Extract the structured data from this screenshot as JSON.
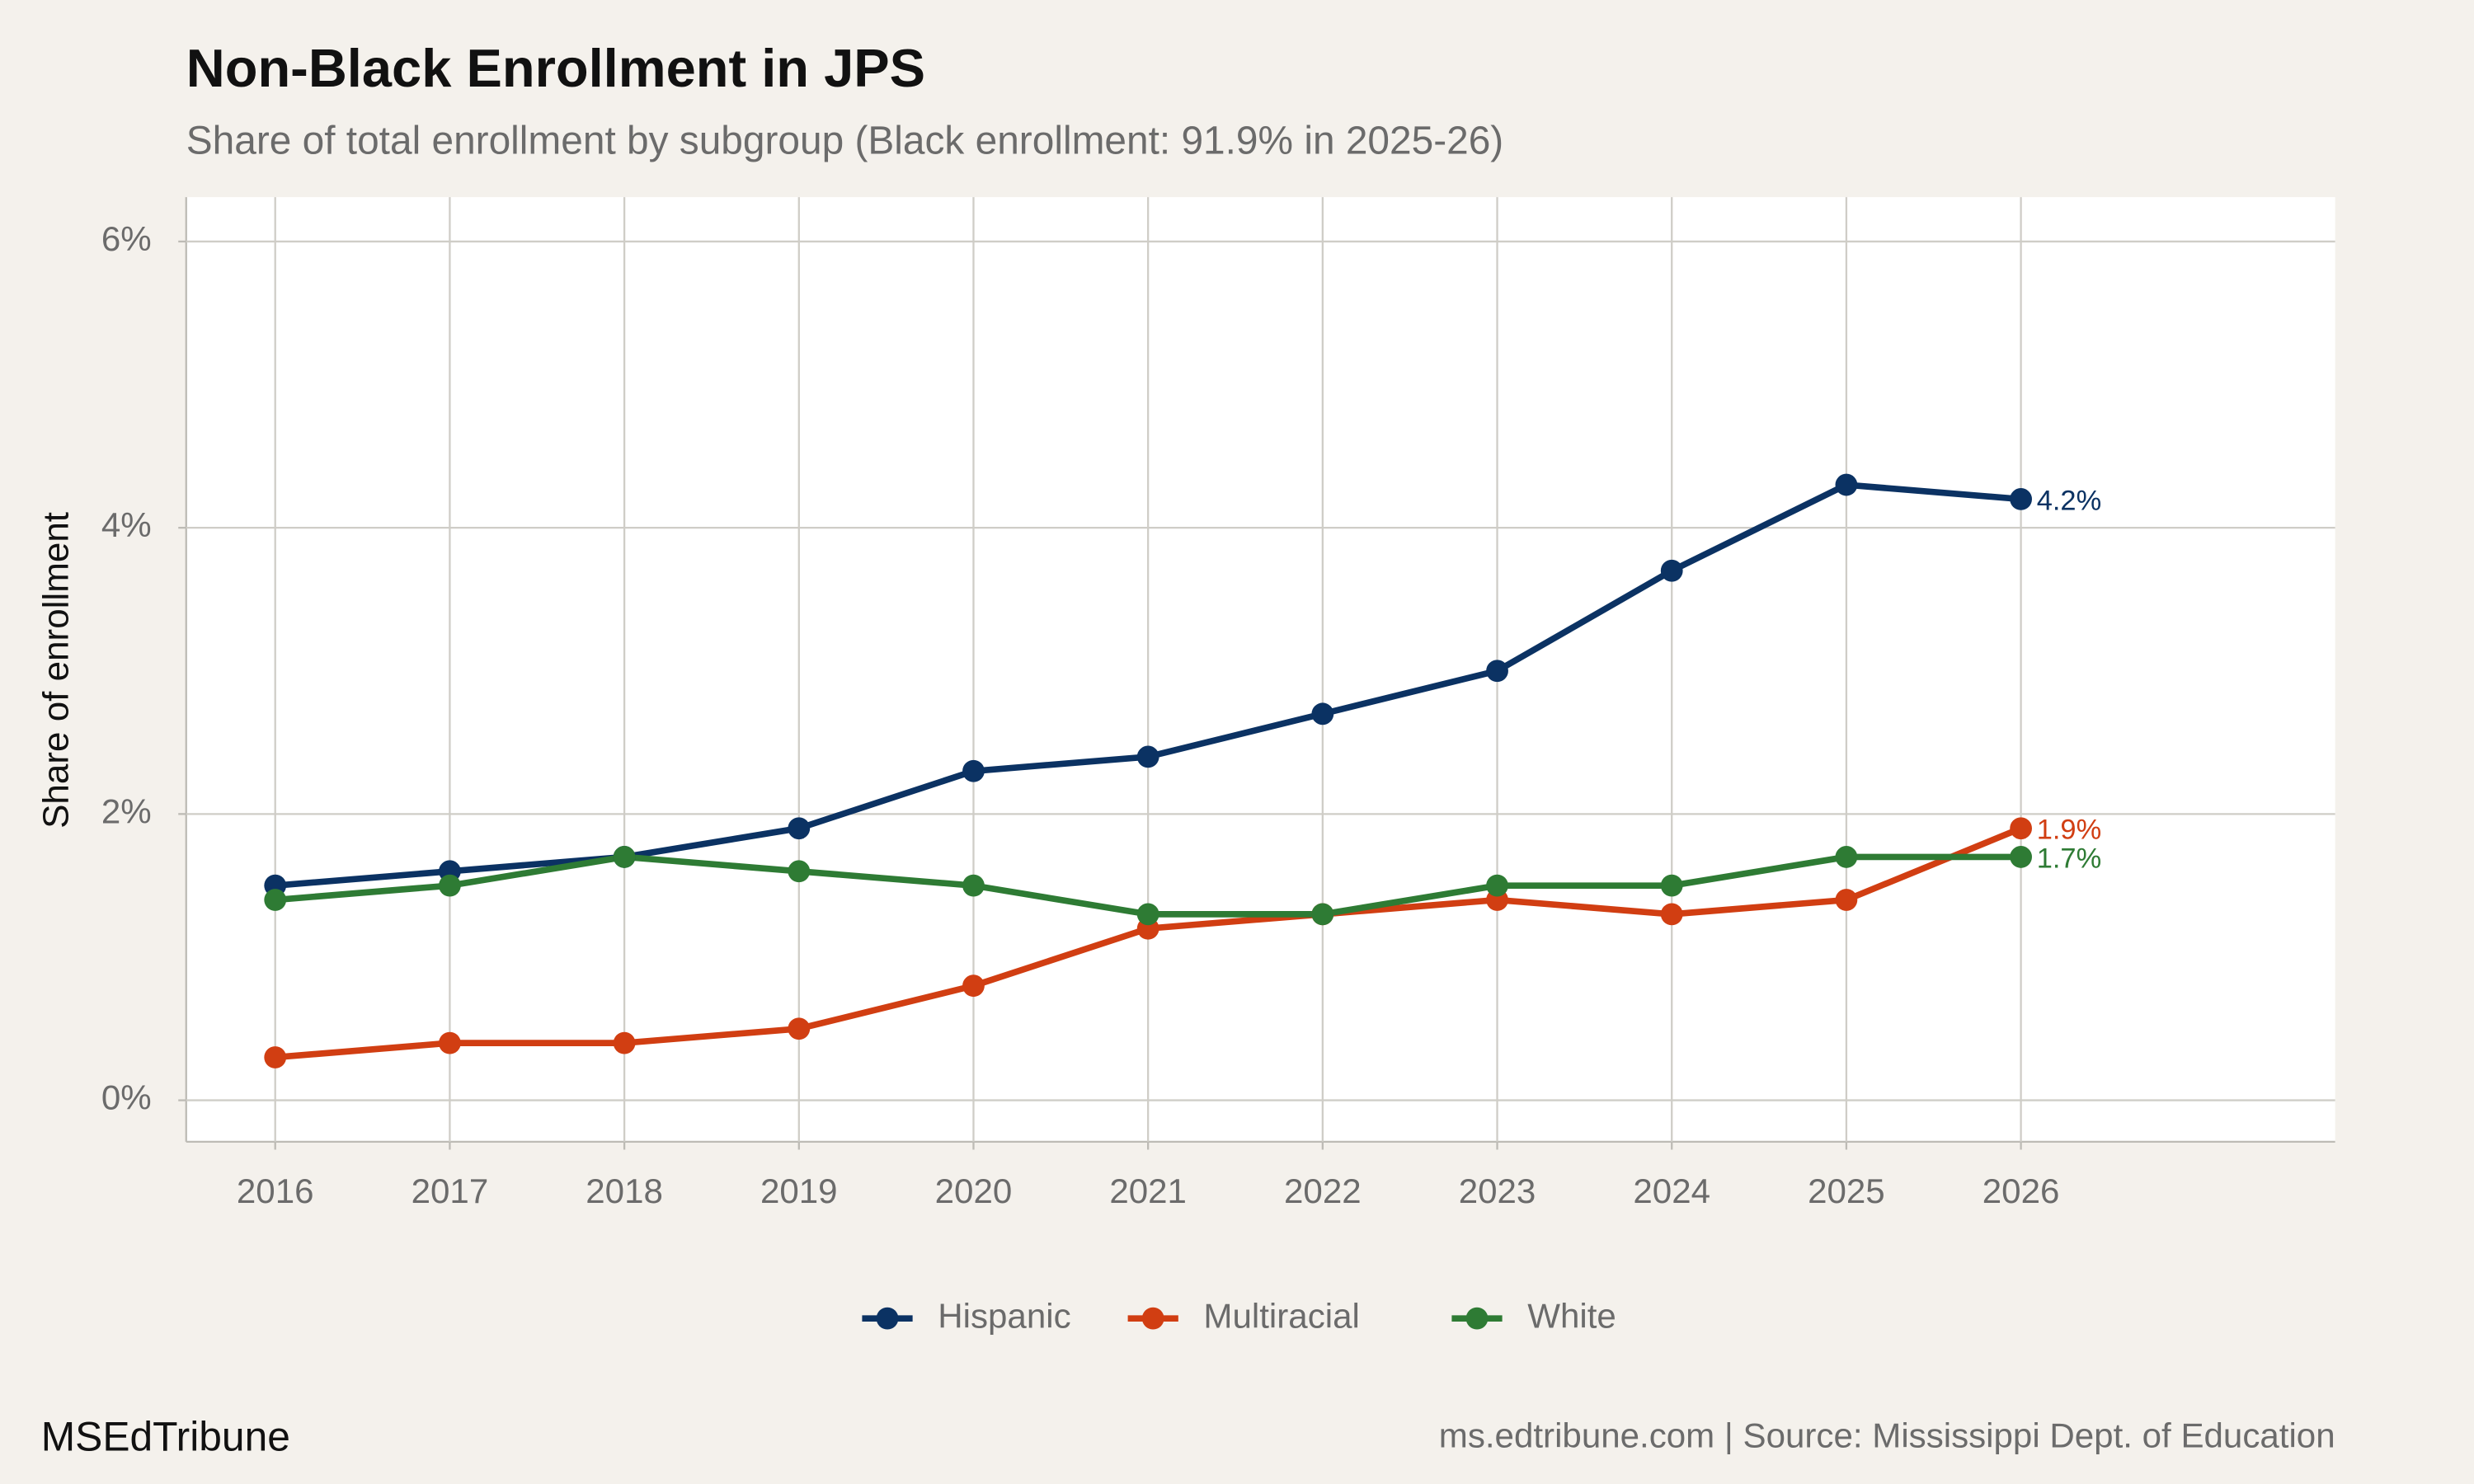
{
  "chart_data": {
    "type": "line",
    "title": "Non-Black Enrollment in JPS",
    "subtitle": "Share of total enrollment by subgroup (Black enrollment: 91.9% in 2025-26)",
    "y_label": "Share of enrollment",
    "caption_left": "MSEdTribune",
    "caption_right": "ms.edtribune.com | Source: Mississippi Dept. of Education",
    "x": [
      2016,
      2017,
      2018,
      2019,
      2020,
      2021,
      2022,
      2023,
      2024,
      2025,
      2026
    ],
    "xlim": [
      2015.49,
      2027.8
    ],
    "xticks": [
      2016,
      2017,
      2018,
      2019,
      2020,
      2021,
      2022,
      2023,
      2024,
      2025,
      2026
    ],
    "ylim": [
      -0.29,
      6.31
    ],
    "yticks": [
      {
        "value": 0,
        "label": "0%"
      },
      {
        "value": 2,
        "label": "2%"
      },
      {
        "value": 4,
        "label": "4%"
      },
      {
        "value": 6,
        "label": "6%"
      }
    ],
    "grid": true,
    "legend": "bottom",
    "series": [
      {
        "name": "Hispanic",
        "color": "#0b3263",
        "values": [
          1.5,
          1.6,
          1.7,
          1.9,
          2.3,
          2.4,
          2.7,
          3.0,
          3.7,
          4.3,
          4.2
        ],
        "value_labels": [
          null,
          null,
          null,
          null,
          null,
          null,
          null,
          null,
          null,
          null,
          "4.2%"
        ]
      },
      {
        "name": "Multiracial",
        "color": "#d13e12",
        "values": [
          0.3,
          0.4,
          0.4,
          0.5,
          0.8,
          1.2,
          1.3,
          1.4,
          1.3,
          1.4,
          1.9
        ],
        "value_labels": [
          null,
          null,
          null,
          null,
          null,
          null,
          null,
          null,
          null,
          null,
          "1.9%"
        ]
      },
      {
        "name": "White",
        "color": "#2e7b34",
        "values": [
          1.4,
          1.5,
          1.7,
          1.6,
          1.5,
          1.3,
          1.3,
          1.5,
          1.5,
          1.7,
          1.7
        ],
        "value_labels": [
          null,
          null,
          null,
          null,
          null,
          null,
          null,
          null,
          null,
          null,
          "1.7%"
        ]
      }
    ]
  }
}
